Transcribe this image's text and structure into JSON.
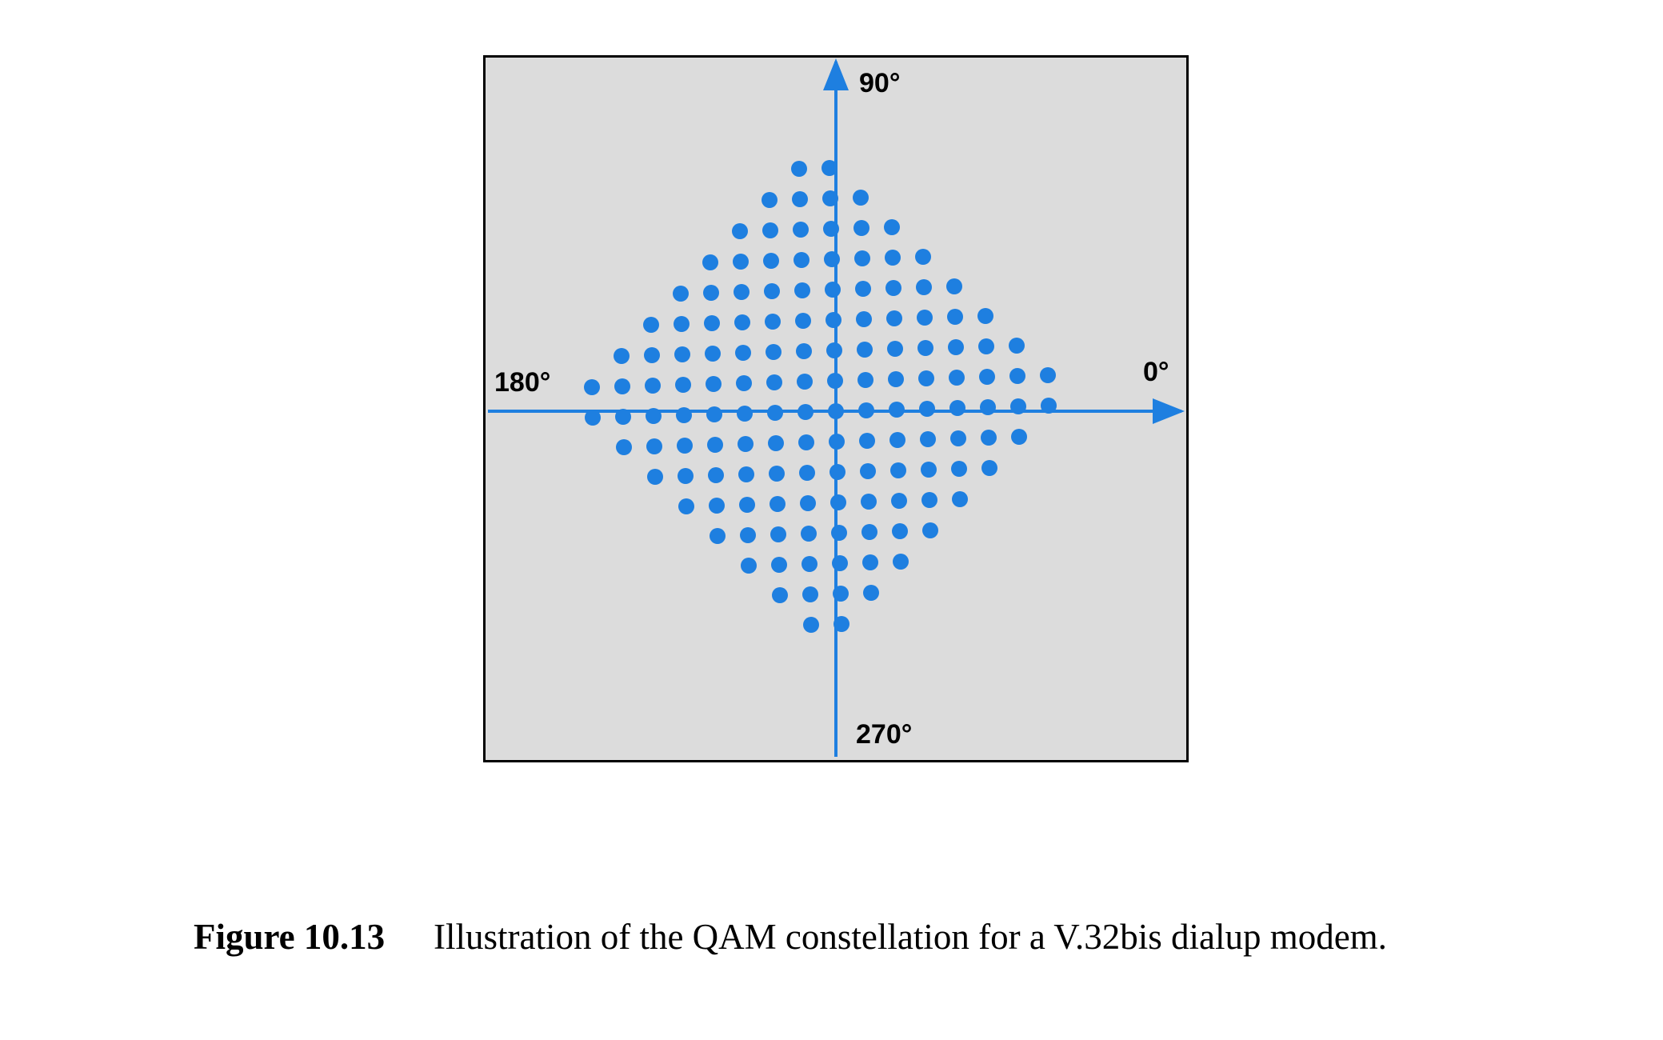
{
  "figure": {
    "axis_labels": {
      "top": "90°",
      "left": "180°",
      "right": "0°",
      "bottom": "270°"
    },
    "colors": {
      "background": "#dcdcdc",
      "border": "#000000",
      "points": "#1e7fe0",
      "axes": "#1e7fe0"
    }
  },
  "caption": {
    "label": "Figure 10.13",
    "text": "Illustration of the QAM constellation for a V.32bis dialup modem."
  }
}
